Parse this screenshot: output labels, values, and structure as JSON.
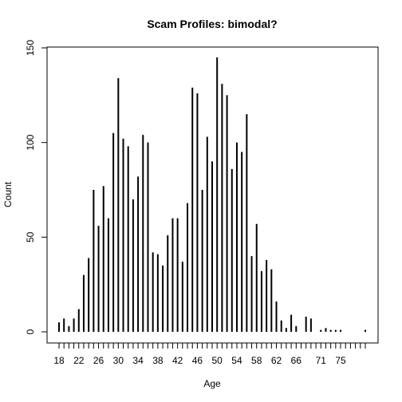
{
  "chart_data": {
    "type": "bar",
    "title": "Scam Profiles: bimodal?",
    "xlabel": "Age",
    "ylabel": "Count",
    "ylim": [
      0,
      150
    ],
    "xlim": [
      18,
      80
    ],
    "y_ticks": [
      0,
      50,
      100,
      150
    ],
    "x_tick_labels": [
      "18",
      "22",
      "26",
      "30",
      "34",
      "38",
      "42",
      "46",
      "50",
      "54",
      "58",
      "62",
      "66",
      "71",
      "75"
    ],
    "x_tick_label_values": [
      18,
      22,
      26,
      30,
      34,
      38,
      42,
      46,
      50,
      54,
      58,
      62,
      66,
      71,
      75
    ],
    "grid": false,
    "series": [
      {
        "ages": [
          18,
          19,
          20,
          21,
          22,
          23,
          24,
          25,
          26,
          27,
          28,
          29,
          30,
          31,
          32,
          33,
          34,
          35,
          36,
          37,
          38,
          39,
          40,
          41,
          42,
          43,
          44,
          45,
          46,
          47,
          48,
          49,
          50,
          51,
          52,
          53,
          54,
          55,
          56,
          57,
          58,
          59,
          60,
          61,
          62,
          63,
          64,
          65,
          66,
          68,
          69,
          71,
          72,
          73,
          74,
          75,
          80
        ],
        "values": [
          5,
          7,
          3,
          7,
          12,
          30,
          39,
          75,
          56,
          77,
          60,
          105,
          134,
          102,
          98,
          70,
          82,
          104,
          100,
          42,
          41,
          35,
          51,
          60,
          60,
          37,
          68,
          129,
          126,
          75,
          103,
          90,
          145,
          131,
          125,
          86,
          100,
          95,
          115,
          40,
          57,
          32,
          38,
          33,
          16,
          6,
          2,
          9,
          3,
          8,
          7,
          1,
          2,
          1,
          1,
          1,
          1
        ]
      }
    ]
  }
}
